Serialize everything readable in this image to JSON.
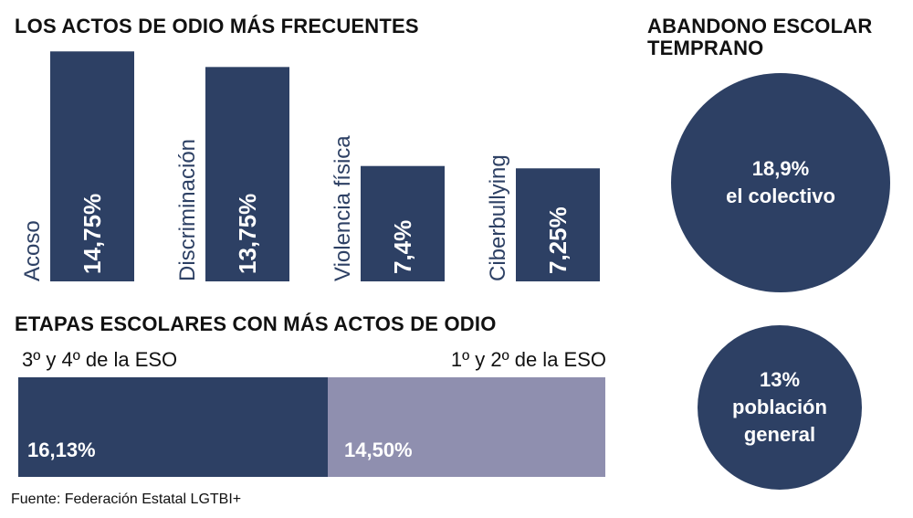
{
  "colors": {
    "navy": "#2d4064",
    "lavender": "#8f8faf",
    "text": "#111111"
  },
  "chart_data": [
    {
      "type": "bar",
      "title": "LOS ACTOS DE ODIO MÁS FRECUENTES",
      "categories": [
        "Acoso",
        "Discriminación",
        "Violencia física",
        "Ciberbullying"
      ],
      "values": [
        14.75,
        13.75,
        7.4,
        7.25
      ],
      "value_labels": [
        "14,75%",
        "13,75%",
        "7,4%",
        "7,25%"
      ],
      "unit": "%",
      "ylim": [
        0,
        15
      ],
      "grid": false,
      "color": "#2d4064"
    },
    {
      "type": "bar",
      "orientation": "horizontal-stacked",
      "title": "ETAPAS ESCOLARES CON MÁS ACTOS DE ODIO",
      "categories": [
        "3º y 4º de la ESO",
        "1º y 2º de la ESO"
      ],
      "values": [
        16.13,
        14.5
      ],
      "value_labels": [
        "16,13%",
        "14,50%"
      ],
      "unit": "%",
      "colors": [
        "#2d4064",
        "#8f8faf"
      ]
    },
    {
      "type": "bubble",
      "title": "ABANDONO ESCOLAR TEMPRANO",
      "items": [
        {
          "value": 18.9,
          "value_label": "18,9%",
          "label": "el colectivo"
        },
        {
          "value": 13,
          "value_label": "13%",
          "label": "población general"
        }
      ],
      "unit": "%",
      "color": "#2d4064"
    }
  ],
  "display": {
    "circle1_line1": "18,9%",
    "circle1_line2": "el colectivo",
    "circle2_line1": "13%",
    "circle2_line2a": "población",
    "circle2_line2b": "general"
  },
  "source": "Fuente: Federación Estatal LGTBI+"
}
